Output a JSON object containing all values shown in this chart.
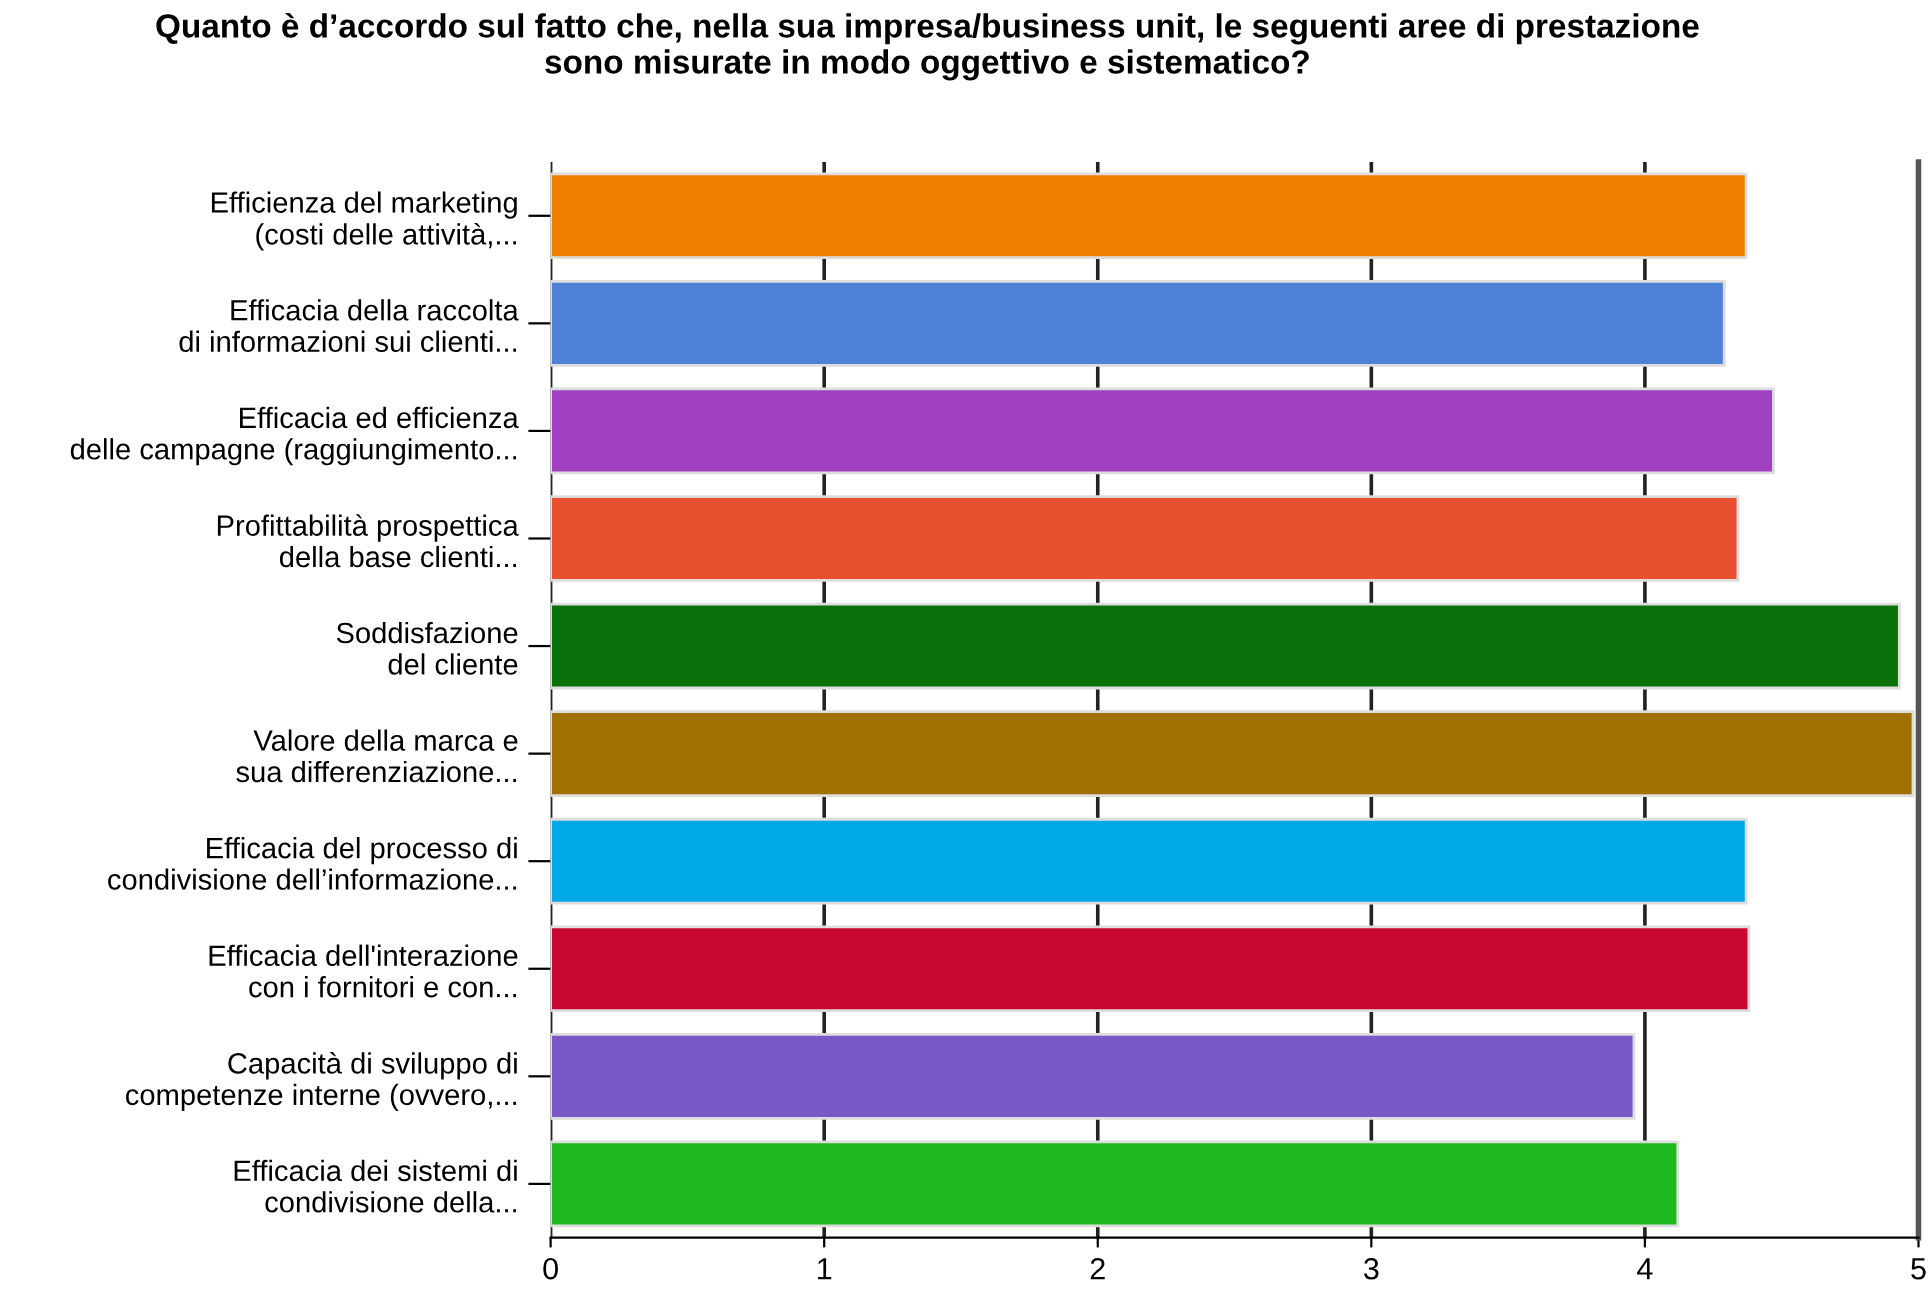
{
  "chart_data": {
    "type": "bar",
    "orientation": "horizontal",
    "title": "Quanto è d’accordo sul fatto che, nella sua impresa/business unit, le seguenti aree di prestazione\nsono misurate in modo oggettivo e sistematico?",
    "categories": [
      "Efficienza del marketing\n(costi delle attività,...",
      "Efficacia della raccolta\ndi informazioni sui clienti...",
      "Efficacia ed efficienza\ndelle campagne (raggiungimento...",
      "Profittabilità prospettica\ndella base clienti...",
      "Soddisfazione\ndel cliente",
      "Valore della marca e\nsua differenziazione...",
      "Efficacia del processo di\ncondivisione dell’informazione...",
      "Efficacia dell'interazione\ncon i fornitori e con...",
      "Capacità di sviluppo di\ncompetenze interne (ovvero,...",
      "Efficacia dei sistemi di\ncondivisione della..."
    ],
    "values": [
      4.37,
      4.29,
      4.47,
      4.34,
      4.93,
      4.98,
      4.37,
      4.38,
      3.96,
      4.12
    ],
    "colors": [
      "#f08000",
      "#4f80d8",
      "#a040c0",
      "#e85030",
      "#0a700a",
      "#a07000",
      "#00a8e8",
      "#c80830",
      "#7a58c8",
      "#20b820"
    ],
    "xlim": [
      0,
      5
    ],
    "xticks": [
      0,
      1,
      2,
      3,
      4,
      5
    ],
    "grid": "x"
  }
}
